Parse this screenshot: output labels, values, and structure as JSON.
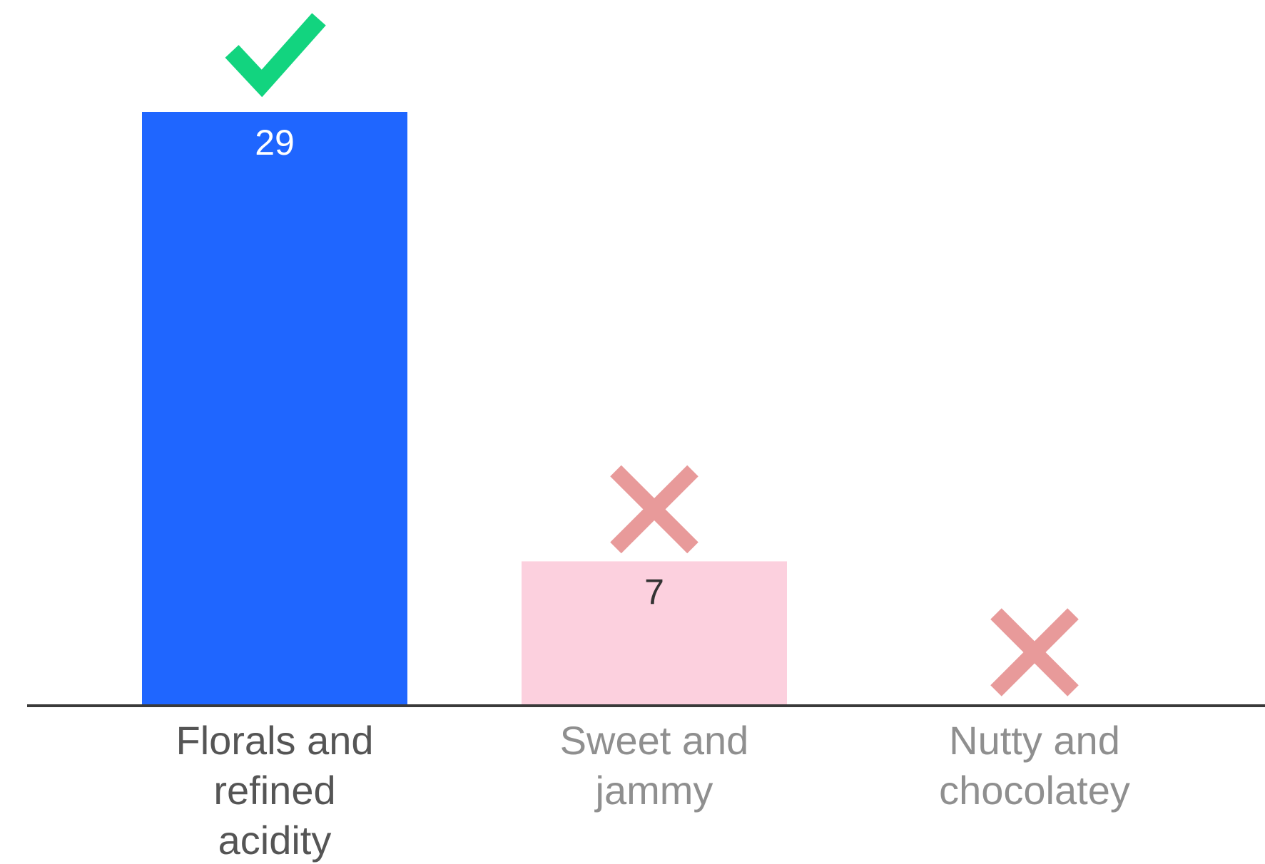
{
  "chart_data": {
    "type": "bar",
    "categories": [
      "Florals and refined acidity",
      "Sweet and jammy",
      "Nutty and chocolatey"
    ],
    "category_lines": [
      [
        "Florals and",
        "refined",
        "acidity"
      ],
      [
        "Sweet and",
        "jammy"
      ],
      [
        "Nutty and",
        "chocolatey"
      ]
    ],
    "values": [
      29,
      7,
      0
    ],
    "value_labels": [
      "29",
      "7",
      ""
    ],
    "markers": [
      "check",
      "cross",
      "cross"
    ],
    "bar_colors": [
      "#1f66ff",
      "#fcd0de",
      "#fcd0de"
    ],
    "value_label_colors": [
      "#ffffff",
      "#333333",
      "#333333"
    ],
    "label_colors": [
      "#555555",
      "#8f8f8f",
      "#8f8f8f"
    ],
    "check_color": "#12d47f",
    "cross_color": "#e89a9a",
    "axis_color": "#3a3a3a",
    "ylim": [
      0,
      29
    ],
    "grid": false,
    "legend": "none"
  }
}
